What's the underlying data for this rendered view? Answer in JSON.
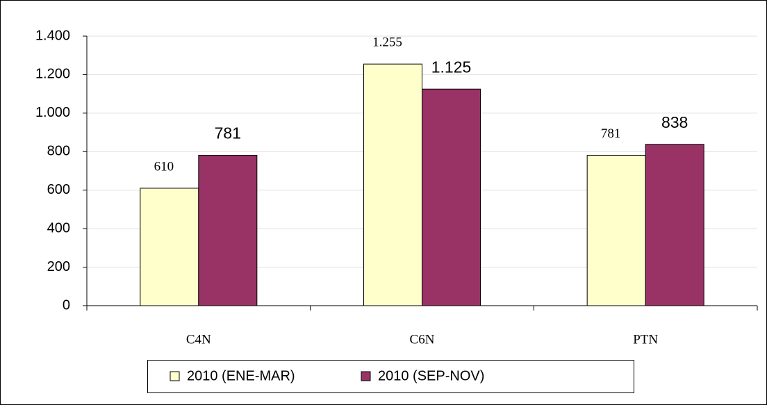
{
  "chart_data": {
    "type": "bar",
    "categories": [
      "C4N",
      "C6N",
      "PTN"
    ],
    "series": [
      {
        "name": "2010 (ENE-MAR)",
        "color": "#ffffcc",
        "values": [
          610,
          1255,
          781
        ],
        "value_labels": [
          "610",
          "1.255",
          "781"
        ]
      },
      {
        "name": "2010 (SEP-NOV)",
        "color": "#993366",
        "values": [
          781,
          1125,
          838
        ],
        "value_labels": [
          "781",
          "1.125",
          "838"
        ]
      }
    ],
    "ylim": [
      0,
      1400
    ],
    "yticks": [
      0,
      200,
      400,
      600,
      800,
      {
        "value": 1000,
        "label": "1.000"
      },
      {
        "value": 1200,
        "label": "1.200"
      },
      {
        "value": 1400,
        "label": "1.400"
      }
    ],
    "grid": true
  }
}
